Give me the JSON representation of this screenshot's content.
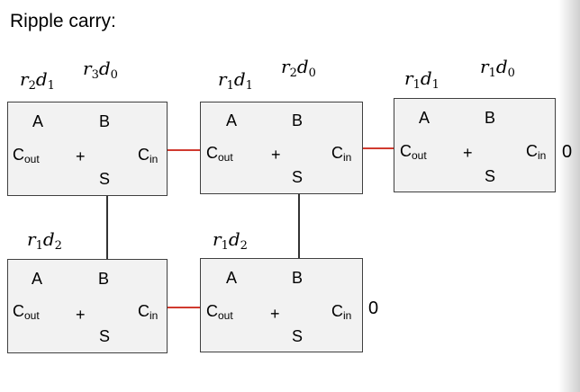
{
  "title": "Ripple carry:",
  "labels": {
    "r2d1": {
      "base": "r",
      "i": "2",
      "mid": "d",
      "j": "1"
    },
    "r3d0": {
      "base": "r",
      "i": "3",
      "mid": "d",
      "j": "0"
    },
    "r1d1a": {
      "base": "r",
      "i": "1",
      "mid": "d",
      "j": "1"
    },
    "r2d0": {
      "base": "r",
      "i": "2",
      "mid": "d",
      "j": "0"
    },
    "r1d1b": {
      "base": "r",
      "i": "1",
      "mid": "d",
      "j": "1"
    },
    "r1d0": {
      "base": "r",
      "i": "1",
      "mid": "d",
      "j": "0"
    },
    "r1d2a": {
      "base": "r",
      "i": "1",
      "mid": "d",
      "j": "2"
    },
    "r1d2b": {
      "base": "r",
      "i": "1",
      "mid": "d",
      "j": "2"
    }
  },
  "adder": {
    "a": "A",
    "b": "B",
    "plus": "+",
    "s": "S",
    "c": "C",
    "out": "out",
    "in": "in"
  },
  "carry_in_constant": "0"
}
